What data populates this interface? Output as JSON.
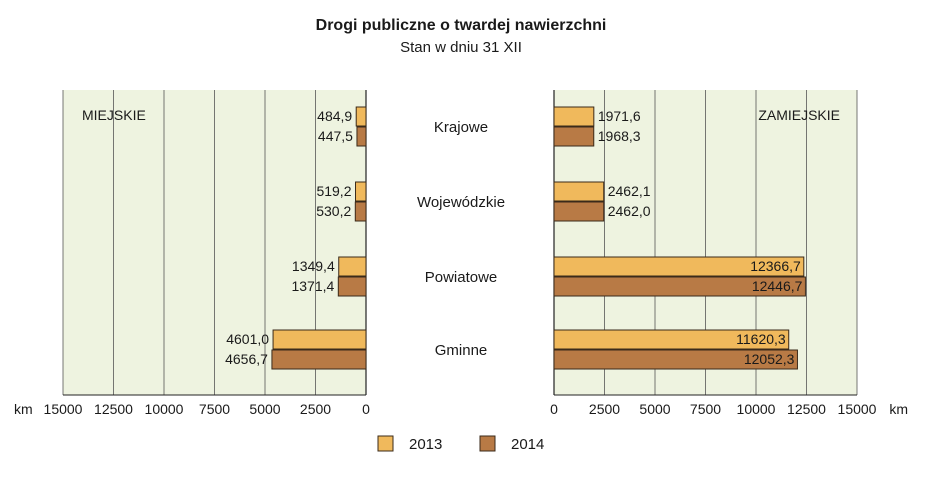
{
  "chart_data": {
    "type": "bar",
    "orientation": "horizontal-mirrored",
    "title": "Drogi publiczne o twardej nawierzchni",
    "subtitle": "Stan w dniu 31 XII",
    "unit": "km",
    "categories": [
      "Krajowe",
      "Wojewódzkie",
      "Powiatowe",
      "Gminne"
    ],
    "panels": [
      {
        "label": "MIEJSKIE",
        "direction": "left",
        "xlim": [
          0,
          15000
        ],
        "ticks": [
          0,
          2500,
          5000,
          7500,
          10000,
          12500,
          15000
        ],
        "tick_labels": [
          "0",
          "2500",
          "5000",
          "7500",
          "10000",
          "12500",
          "15000"
        ],
        "series": [
          {
            "name": "2013",
            "values": [
              484.9,
              519.2,
              1349.4,
              4601.0
            ],
            "labels": [
              "484,9",
              "519,2",
              "1349,4",
              "4601,0"
            ]
          },
          {
            "name": "2014",
            "values": [
              447.5,
              530.2,
              1371.4,
              4656.7
            ],
            "labels": [
              "447,5",
              "530,2",
              "1371,4",
              "4656,7"
            ]
          }
        ]
      },
      {
        "label": "ZAMIEJSKIE",
        "direction": "right",
        "xlim": [
          0,
          15000
        ],
        "ticks": [
          0,
          2500,
          5000,
          7500,
          10000,
          12500,
          15000
        ],
        "tick_labels": [
          "0",
          "2500",
          "5000",
          "7500",
          "10000",
          "12500",
          "15000"
        ],
        "series": [
          {
            "name": "2013",
            "values": [
              1971.6,
              2462.1,
              12366.7,
              11620.3
            ],
            "labels": [
              "1971,6",
              "2462,1",
              "12366,7",
              "11620,3"
            ]
          },
          {
            "name": "2014",
            "values": [
              1968.3,
              2462.0,
              12446.7,
              12052.3
            ],
            "labels": [
              "1968,3",
              "2462,0",
              "12446,7",
              "12052,3"
            ]
          }
        ]
      }
    ],
    "legend": {
      "placement": "bottom",
      "entries": [
        "2013",
        "2014"
      ]
    },
    "grid": true,
    "colors": {
      "2013": "#f0b95c",
      "2014": "#b87a45",
      "panel_bg": "#eef3e0",
      "grid": "#555555",
      "border": "#3a2a1a"
    }
  }
}
